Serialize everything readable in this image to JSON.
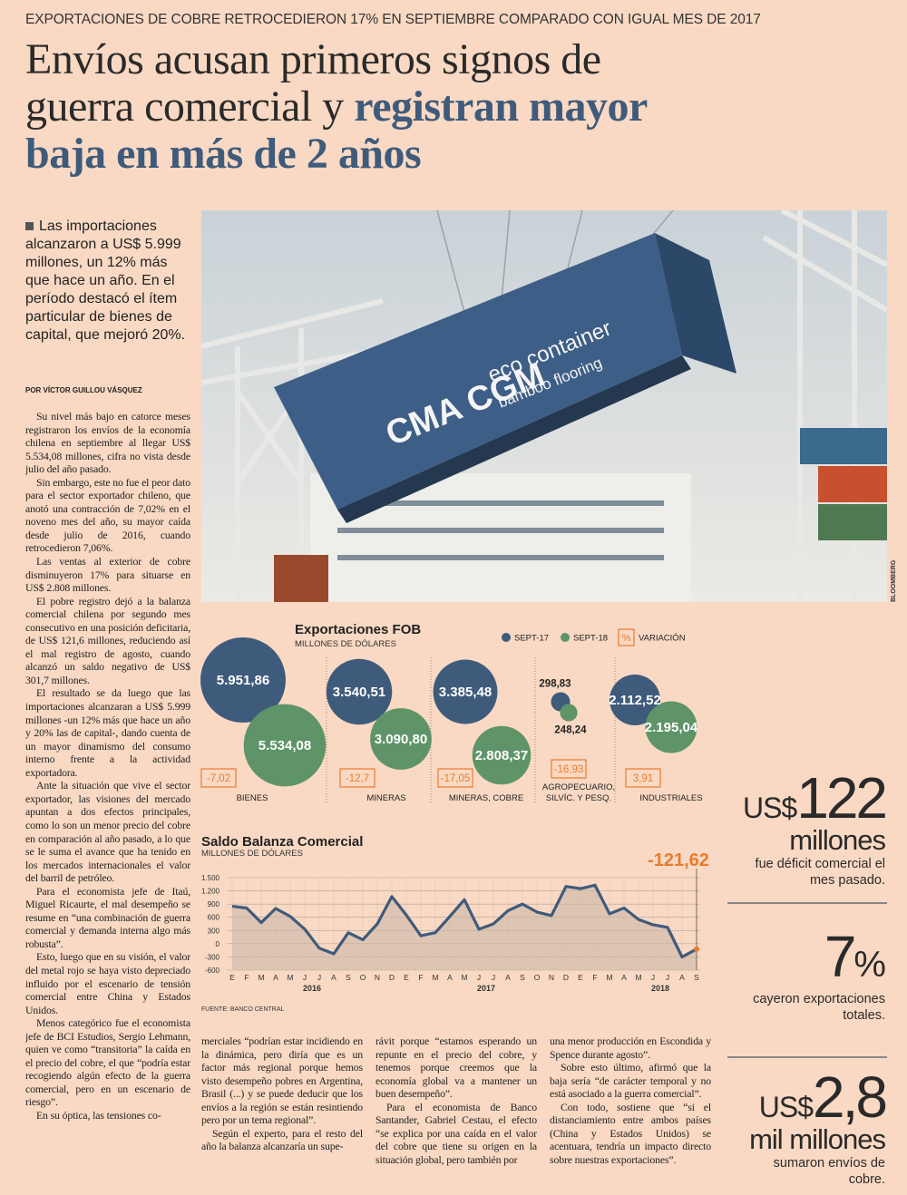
{
  "kicker": "EXPORTACIONES DE COBRE RETROCEDIERON 17% EN SEPTIEMBRE COMPARADO CON IGUAL MES DE 2017",
  "headline": {
    "lead": "Envíos acusan primeros signos de guerra comercial y",
    "emphasis": "registran mayor baja en más de 2 años"
  },
  "lede": "Las importaciones alcanzaron a US$ 5.999 millones, un 12% más que hace un año. En el período destacó el ítem particular de bienes de capital, que mejoró 20%.",
  "byline": "POR VÍCTOR GUILLOU VÁSQUEZ",
  "photo": {
    "credit": "BLOOMBERG",
    "texts": [
      "CMA CGM",
      "eco container",
      "bamboo flooring"
    ]
  },
  "body": {
    "column_1": [
      "Su nivel más bajo en catorce meses registraron los envíos de la economía chilena en septiembre al llegar US$ 5.534,08 millones, cifra no vista desde julio del año pasado.",
      "Sin embargo, este no fue el peor dato para el sector exportador chileno, que anotó una contracción de 7,02% en el noveno mes del año, su mayor caída desde julio de 2016, cuando retrocedieron 7,06%.",
      "Las ventas al exterior de cobre disminuyeron 17% para situarse en US$ 2.808 millones.",
      "El pobre registro dejó a la balanza comercial chilena por segundo mes consecutivo en una posición deficitaria, de US$ 121,6 millones, reduciendo así el mal registro de agosto, cuando alcanzó un saldo negativo de US$ 301,7 millones.",
      "El resultado se da luego que las importaciones alcanzaran a US$ 5.999 millones -un 12% más que hace un año y 20% las de capital-, dando cuenta de un mayor dinamismo del consumo interno frente a la actividad exportadora.",
      "Ante la situación que vive el sector exportador, las visiones del mercado apuntan a dos efectos principales, como lo son un menor precio del cobre en comparación al año pasado, a lo que se le suma el avance que ha tenido en los mercados internacionales el valor del barril de petróleo.",
      "Para el economista jefe de Itaú, Miguel Ricaurte, el mal desempeño se resume en “una combinación de guerra comercial y demanda interna algo más robusta”.",
      "Esto, luego que en su visión, el valor del metal rojo se haya visto depreciado influido por el escenario de tensión comercial entre China y Estados Unidos.",
      "Menos categórico fue el economista jefe de BCI Estudios, Sergio Lehmann, quien ve como “transitoria” la caída en el precio del cobre, el que “podría estar recogiendo algún efecto de la guerra comercial, pero en un escenario de riesgo”.",
      "En su óptica, las tensiones co-"
    ],
    "column_2": [
      "merciales “podrían estar incidiendo en la dinámica, pero diría que es un factor más regional porque hemos visto desempeño pobres en Argentina, Brasil (...) y se puede deducir que los envíos a la región se están resintiendo pero por un tema regional”.",
      "Según el experto, para el resto del año la balanza alcanzaría un supe-"
    ],
    "column_3": [
      "rávit porque “estamos esperando un repunte en el precio del cobre, y tenemos porque creemos que la economía global va a mantener un buen desempeño”.",
      "Para el economista de Banco Santander, Gabriel Cestau, el efecto “se explica por una caída en el valor del cobre que tiene su origen en la situación global, pero también por"
    ],
    "column_4": [
      "una menor producción en Escondida y Spence durante agosto”.",
      "Sobre esto último, afirmó que la baja sería “de carácter temporal y no está asociado a la guerra comercial”.",
      "Con todo, sostiene que “si el distanciamiento entre ambos países (China y Estados Unidos) se acentuara, tendría un impacto directo sobre nuestras exportaciones”."
    ]
  },
  "highlights": [
    {
      "prefix": "US$",
      "number": "122",
      "unit": "millones",
      "caption": "fue déficit comercial el mes pasado."
    },
    {
      "number": "7",
      "suffix": "%",
      "caption": "cayeron exportaciones totales."
    },
    {
      "prefix": "US$",
      "number": "2,8",
      "unit": "mil millones",
      "caption": "sumaron envíos de cobre."
    }
  ],
  "chart_data": [
    {
      "type": "bubble",
      "title": "Exportaciones FOB",
      "subtitle": "MILLONES DE DÓLARES",
      "categories": [
        "BIENES",
        "MINERAS",
        "MINERAS, COBRE",
        "AGROPECUARIO, SILVÍC. Y PESQ.",
        "INDUSTRIALES"
      ],
      "series": [
        {
          "name": "SEPT-17",
          "color": "#3f5b7b",
          "values": [
            5951.86,
            3540.51,
            3385.48,
            298.83,
            2112.52
          ],
          "value_labels": [
            "5.951,86",
            "3.540,51",
            "3.385,48",
            "298,83",
            "2.112,52"
          ]
        },
        {
          "name": "SEPT-18",
          "color": "#5f9468",
          "values": [
            5534.08,
            3090.8,
            2808.37,
            248.24,
            2195.04
          ],
          "value_labels": [
            "5.534,08",
            "3.090,80",
            "2.808,37",
            "248,24",
            "2.195,04"
          ]
        }
      ],
      "variation": {
        "name": "VARIACIÓN",
        "symbol": "%",
        "color": "#e97b2e",
        "values": [
          -7.02,
          -12.7,
          -17.05,
          -16.93,
          3.91
        ],
        "value_labels": [
          "-7,02",
          "-12,7",
          "-17,05",
          "-16,93",
          "3,91"
        ]
      }
    },
    {
      "type": "area-line",
      "title": "Saldo Balanza Comercial",
      "subtitle": "MILLONES DE DÓLARES",
      "categories": [
        "E",
        "F",
        "M",
        "A",
        "M",
        "J",
        "J",
        "A",
        "S",
        "O",
        "N",
        "D",
        "E",
        "F",
        "M",
        "A",
        "M",
        "J",
        "J",
        "A",
        "S",
        "O",
        "N",
        "D",
        "E",
        "F",
        "M",
        "A",
        "M",
        "J",
        "J",
        "A",
        "S"
      ],
      "years": [
        "2016",
        "2017",
        "2018"
      ],
      "values": [
        850,
        810,
        480,
        800,
        620,
        330,
        -100,
        -230,
        250,
        90,
        450,
        1070,
        650,
        180,
        250,
        620,
        1000,
        330,
        450,
        750,
        900,
        720,
        640,
        1300,
        1250,
        1330,
        680,
        810,
        550,
        430,
        370,
        -301.7,
        -121.62
      ],
      "value_labels": [
        null,
        null,
        null,
        null,
        null,
        null,
        null,
        null,
        null,
        null,
        null,
        null,
        null,
        null,
        null,
        null,
        null,
        null,
        null,
        null,
        null,
        null,
        null,
        null,
        null,
        null,
        null,
        null,
        null,
        null,
        null,
        null,
        "-121,62"
      ],
      "color": "#3f5b7b",
      "annotation_color": "#e97b2e",
      "ylim": [
        -600,
        1500
      ],
      "yticks": [
        {
          "value": 1500,
          "label": "1.500"
        },
        {
          "value": 1200,
          "label": "1.200"
        },
        900,
        600,
        300,
        0,
        -300,
        -600
      ],
      "grid": true,
      "source": "FUENTE: BANCO CENTRAL"
    }
  ]
}
